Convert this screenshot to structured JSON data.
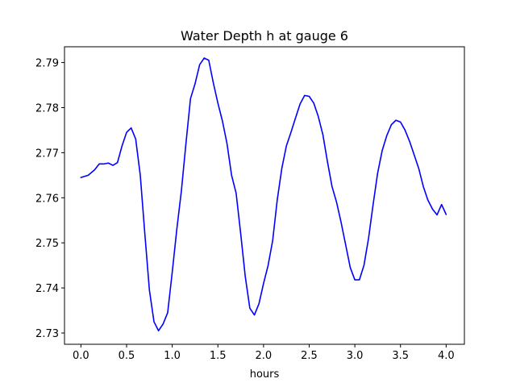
{
  "chart_data": {
    "type": "line",
    "title": "Water Depth h at gauge 6",
    "xlabel": "hours",
    "ylabel": "",
    "xlim": [
      -0.18,
      4.2
    ],
    "ylim": [
      2.7275,
      2.7935
    ],
    "grid": false,
    "xticks": [
      0.0,
      0.5,
      1.0,
      1.5,
      2.0,
      2.5,
      3.0,
      3.5,
      4.0
    ],
    "xtick_labels": [
      "0.0",
      "0.5",
      "1.0",
      "1.5",
      "2.0",
      "2.5",
      "3.0",
      "3.5",
      "4.0"
    ],
    "yticks": [
      2.73,
      2.74,
      2.75,
      2.76,
      2.77,
      2.78,
      2.79
    ],
    "ytick_labels": [
      "2.73",
      "2.74",
      "2.75",
      "2.76",
      "2.77",
      "2.78",
      "2.79"
    ],
    "series": [
      {
        "color": "#0000ff",
        "x": [
          0.0,
          0.08,
          0.15,
          0.2,
          0.25,
          0.3,
          0.35,
          0.4,
          0.45,
          0.5,
          0.55,
          0.6,
          0.65,
          0.7,
          0.75,
          0.8,
          0.85,
          0.9,
          0.95,
          1.0,
          1.05,
          1.1,
          1.15,
          1.2,
          1.25,
          1.3,
          1.35,
          1.4,
          1.45,
          1.5,
          1.55,
          1.6,
          1.65,
          1.7,
          1.75,
          1.8,
          1.85,
          1.9,
          1.95,
          2.0,
          2.05,
          2.1,
          2.15,
          2.2,
          2.25,
          2.3,
          2.35,
          2.4,
          2.45,
          2.5,
          2.55,
          2.6,
          2.65,
          2.7,
          2.75,
          2.8,
          2.85,
          2.9,
          2.95,
          3.0,
          3.05,
          3.1,
          3.15,
          3.2,
          3.25,
          3.3,
          3.35,
          3.4,
          3.45,
          3.5,
          3.55,
          3.6,
          3.65,
          3.7,
          3.75,
          3.8,
          3.85,
          3.9,
          3.95,
          4.0
        ],
        "y": [
          2.7645,
          2.765,
          2.7662,
          2.7675,
          2.7675,
          2.7677,
          2.7672,
          2.7678,
          2.7715,
          2.7745,
          2.7755,
          2.773,
          2.765,
          2.752,
          2.7395,
          2.7325,
          2.7305,
          2.732,
          2.7345,
          2.7435,
          2.753,
          2.7615,
          2.772,
          2.782,
          2.7853,
          2.7895,
          2.791,
          2.7905,
          2.7855,
          2.781,
          2.777,
          2.772,
          2.765,
          2.761,
          2.752,
          2.7425,
          2.7355,
          2.734,
          2.7365,
          2.741,
          2.745,
          2.7505,
          2.7595,
          2.7665,
          2.7715,
          2.7745,
          2.7777,
          2.7808,
          2.7827,
          2.7825,
          2.781,
          2.778,
          2.774,
          2.768,
          2.7625,
          2.759,
          2.7545,
          2.7495,
          2.7445,
          2.7418,
          2.7418,
          2.745,
          2.751,
          2.7585,
          2.7655,
          2.7705,
          2.7738,
          2.7762,
          2.7772,
          2.7768,
          2.775,
          2.7725,
          2.7695,
          2.7665,
          2.7625,
          2.7595,
          2.7575,
          2.7562,
          2.7585,
          2.7563
        ]
      }
    ]
  }
}
